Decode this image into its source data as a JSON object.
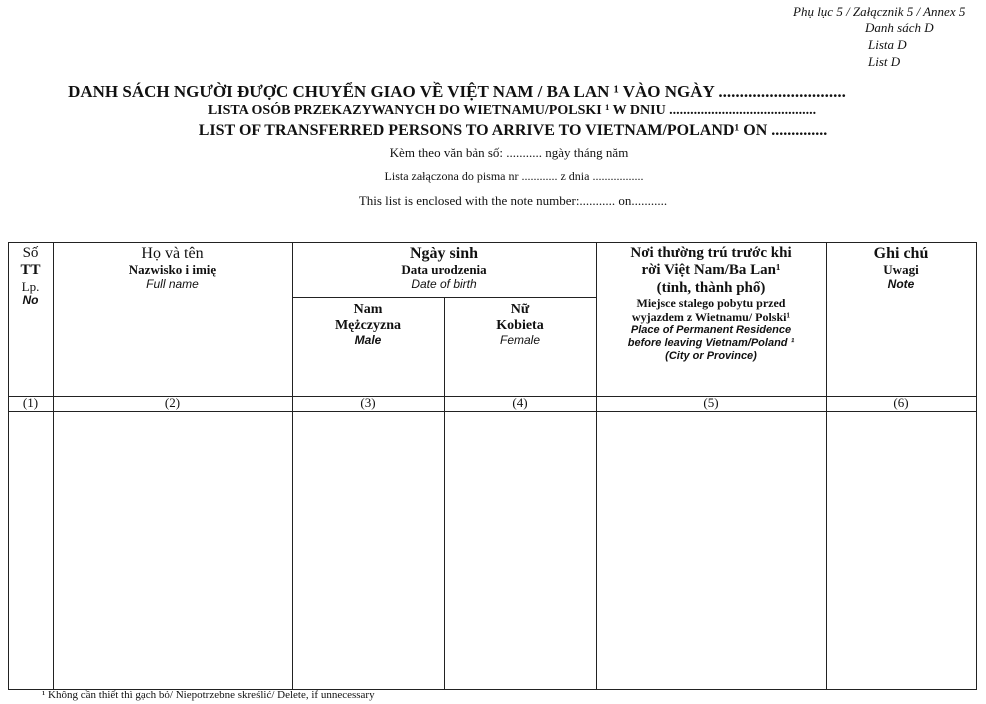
{
  "annex": {
    "line1": "Phụ lục 5 / Załącznik 5 / Annex 5",
    "line2": "Danh sách D",
    "line3": "Lista D",
    "line4": "List D"
  },
  "title": {
    "vi": "DANH SÁCH NGƯỜI ĐƯỢC CHUYỂN GIAO  VỀ VIỆT NAM / BA LAN ¹ VÀO NGÀY ..............................",
    "pl": "LISTA OSÓB PRZEKAZYWANYCH DO WIETNAMU/POLSKI ¹  W DNIU ..........................................",
    "en": "LIST OF  TRANSFERRED PERSONS TO ARRIVE TO VIETNAM/POLAND¹ ON ..............",
    "attach_vi": "Kèm theo văn bản số:  ...........    ngày    tháng       năm",
    "attach_pl": "Lista  załączona do pisma nr ............ z dnia .................",
    "attach_en": "This list is enclosed with the note number:........... on..........."
  },
  "table": {
    "col1": {
      "vi": "Số",
      "vi2": "TT",
      "pl": "Lp.",
      "en": "No",
      "num": "(1)"
    },
    "col2": {
      "vi": "Họ và tên",
      "pl": "Nazwisko i imię",
      "en": "Full name",
      "num": "(2)"
    },
    "dob": {
      "vi": "Ngày sinh",
      "pl": "Data urodzenia",
      "en": "Date of birth"
    },
    "col3": {
      "vi": "Nam",
      "pl": "Mężczyzna",
      "en": "Male",
      "num": "(3)"
    },
    "col4": {
      "vi": "Nữ",
      "pl": "Kobieta",
      "en": "Female",
      "num": "(4)"
    },
    "col5": {
      "vi1": "Nơi thường trú trước khi",
      "vi2": "rời Việt Nam/Ba Lan¹",
      "vi3": "(tỉnh, thành phố)",
      "pl1": "Miejsce stalego pobytu przed",
      "pl2": "wyjazdem z Wietnamu/ Polski¹",
      "en1": "Place of Permanent Residence",
      "en2": "before leaving Vietnam/Poland ¹",
      "en3": "(City or Province)",
      "num": "(5)"
    },
    "col6": {
      "vi": "Ghi chú",
      "pl": "Uwagi",
      "en": "Note",
      "num": "(6)"
    }
  },
  "footnote": "¹  Không cần thiết thì gạch bỏ/ Niepotrzebne skreślić/ Delete, if  unnecessary"
}
